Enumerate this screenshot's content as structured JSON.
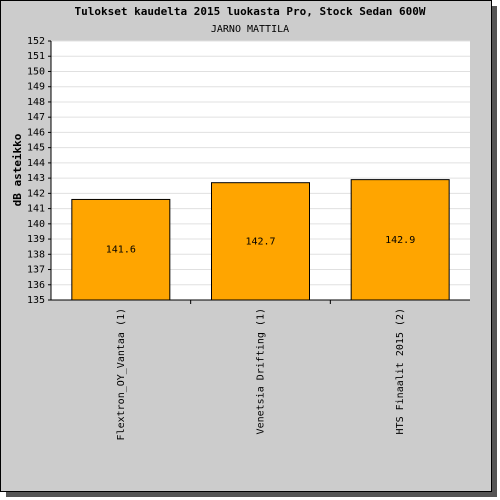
{
  "chart_data": {
    "type": "bar",
    "title": "Tulokset kaudelta 2015 luokasta Pro, Stock Sedan 600W",
    "subtitle": "JARNO MATTILA",
    "y_label": "dB asteikko",
    "categories": [
      "Flextron_OY_Vantaa (1)",
      "Venetsia Drifting (1)",
      "HTS Finaalit 2015 (2)"
    ],
    "values": [
      141.6,
      142.7,
      142.9
    ],
    "color": "#ffa500",
    "ylim": [
      135,
      152
    ],
    "yticks": [
      135,
      136,
      137,
      138,
      139,
      140,
      141,
      142,
      143,
      144,
      145,
      146,
      147,
      148,
      149,
      150,
      151,
      152
    ],
    "grid": true
  }
}
